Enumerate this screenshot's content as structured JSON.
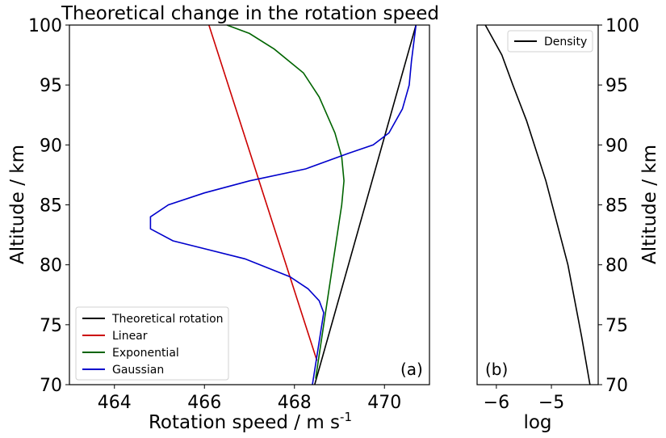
{
  "chart_data": [
    {
      "type": "line",
      "panel_label": "(a)",
      "title": "Theoretical change in the rotation speed",
      "xlabel": "Rotation speed / m s",
      "xlabel_sup": "-1",
      "ylabel": "Altitude / km",
      "xlim": [
        463,
        471
      ],
      "ylim": [
        70,
        100
      ],
      "xticks": [
        464,
        466,
        468,
        470
      ],
      "yticks": [
        70,
        75,
        80,
        85,
        90,
        95,
        100
      ],
      "legend_position": "lower-left",
      "series": [
        {
          "name": "Theoretical rotation",
          "color": "#000000",
          "points": [
            [
              468.45,
              70
            ],
            [
              470.7,
              100
            ]
          ]
        },
        {
          "name": "Linear",
          "color": "#cc0000",
          "points": [
            [
              468.5,
              72
            ],
            [
              466.1,
              100
            ]
          ]
        },
        {
          "name": "Exponential",
          "color": "#006400",
          "points": [
            [
              468.47,
              70.5
            ],
            [
              468.65,
              75
            ],
            [
              468.85,
              80
            ],
            [
              469.05,
              85
            ],
            [
              469.1,
              87
            ],
            [
              469.05,
              89
            ],
            [
              468.9,
              91
            ],
            [
              468.55,
              94
            ],
            [
              468.2,
              96
            ],
            [
              467.55,
              98
            ],
            [
              467.0,
              99.3
            ],
            [
              466.5,
              100
            ]
          ]
        },
        {
          "name": "Gaussian",
          "color": "#0000cc",
          "points": [
            [
              468.4,
              70
            ],
            [
              468.65,
              76
            ],
            [
              468.55,
              77
            ],
            [
              468.3,
              78
            ],
            [
              467.9,
              79
            ],
            [
              466.9,
              80.5
            ],
            [
              465.3,
              82
            ],
            [
              464.8,
              83
            ],
            [
              464.8,
              84
            ],
            [
              465.2,
              85
            ],
            [
              466.0,
              86
            ],
            [
              467.0,
              87
            ],
            [
              468.25,
              88
            ],
            [
              469.2,
              89.3
            ],
            [
              469.75,
              90
            ],
            [
              470.1,
              91
            ],
            [
              470.4,
              93
            ],
            [
              470.55,
              95
            ],
            [
              470.6,
              97
            ],
            [
              470.7,
              100
            ]
          ]
        }
      ]
    },
    {
      "type": "line",
      "panel_label": "(b)",
      "xlabel": "log",
      "ylabel": "Altitude / km",
      "xlim": [
        -6.35,
        -4.15
      ],
      "ylim": [
        70,
        100
      ],
      "xticks": [
        -6,
        -5
      ],
      "xtick_labels": [
        "−6",
        "−5"
      ],
      "yticks": [
        70,
        75,
        80,
        85,
        90,
        95,
        100
      ],
      "legend_position": "top-right",
      "series": [
        {
          "name": "Density",
          "color": "#000000",
          "points": [
            [
              -4.3,
              70
            ],
            [
              -4.45,
              74
            ],
            [
              -4.7,
              80
            ],
            [
              -5.1,
              87
            ],
            [
              -5.45,
              92
            ],
            [
              -5.7,
              95
            ],
            [
              -5.9,
              97.5
            ],
            [
              -6.2,
              100
            ]
          ]
        }
      ]
    }
  ]
}
